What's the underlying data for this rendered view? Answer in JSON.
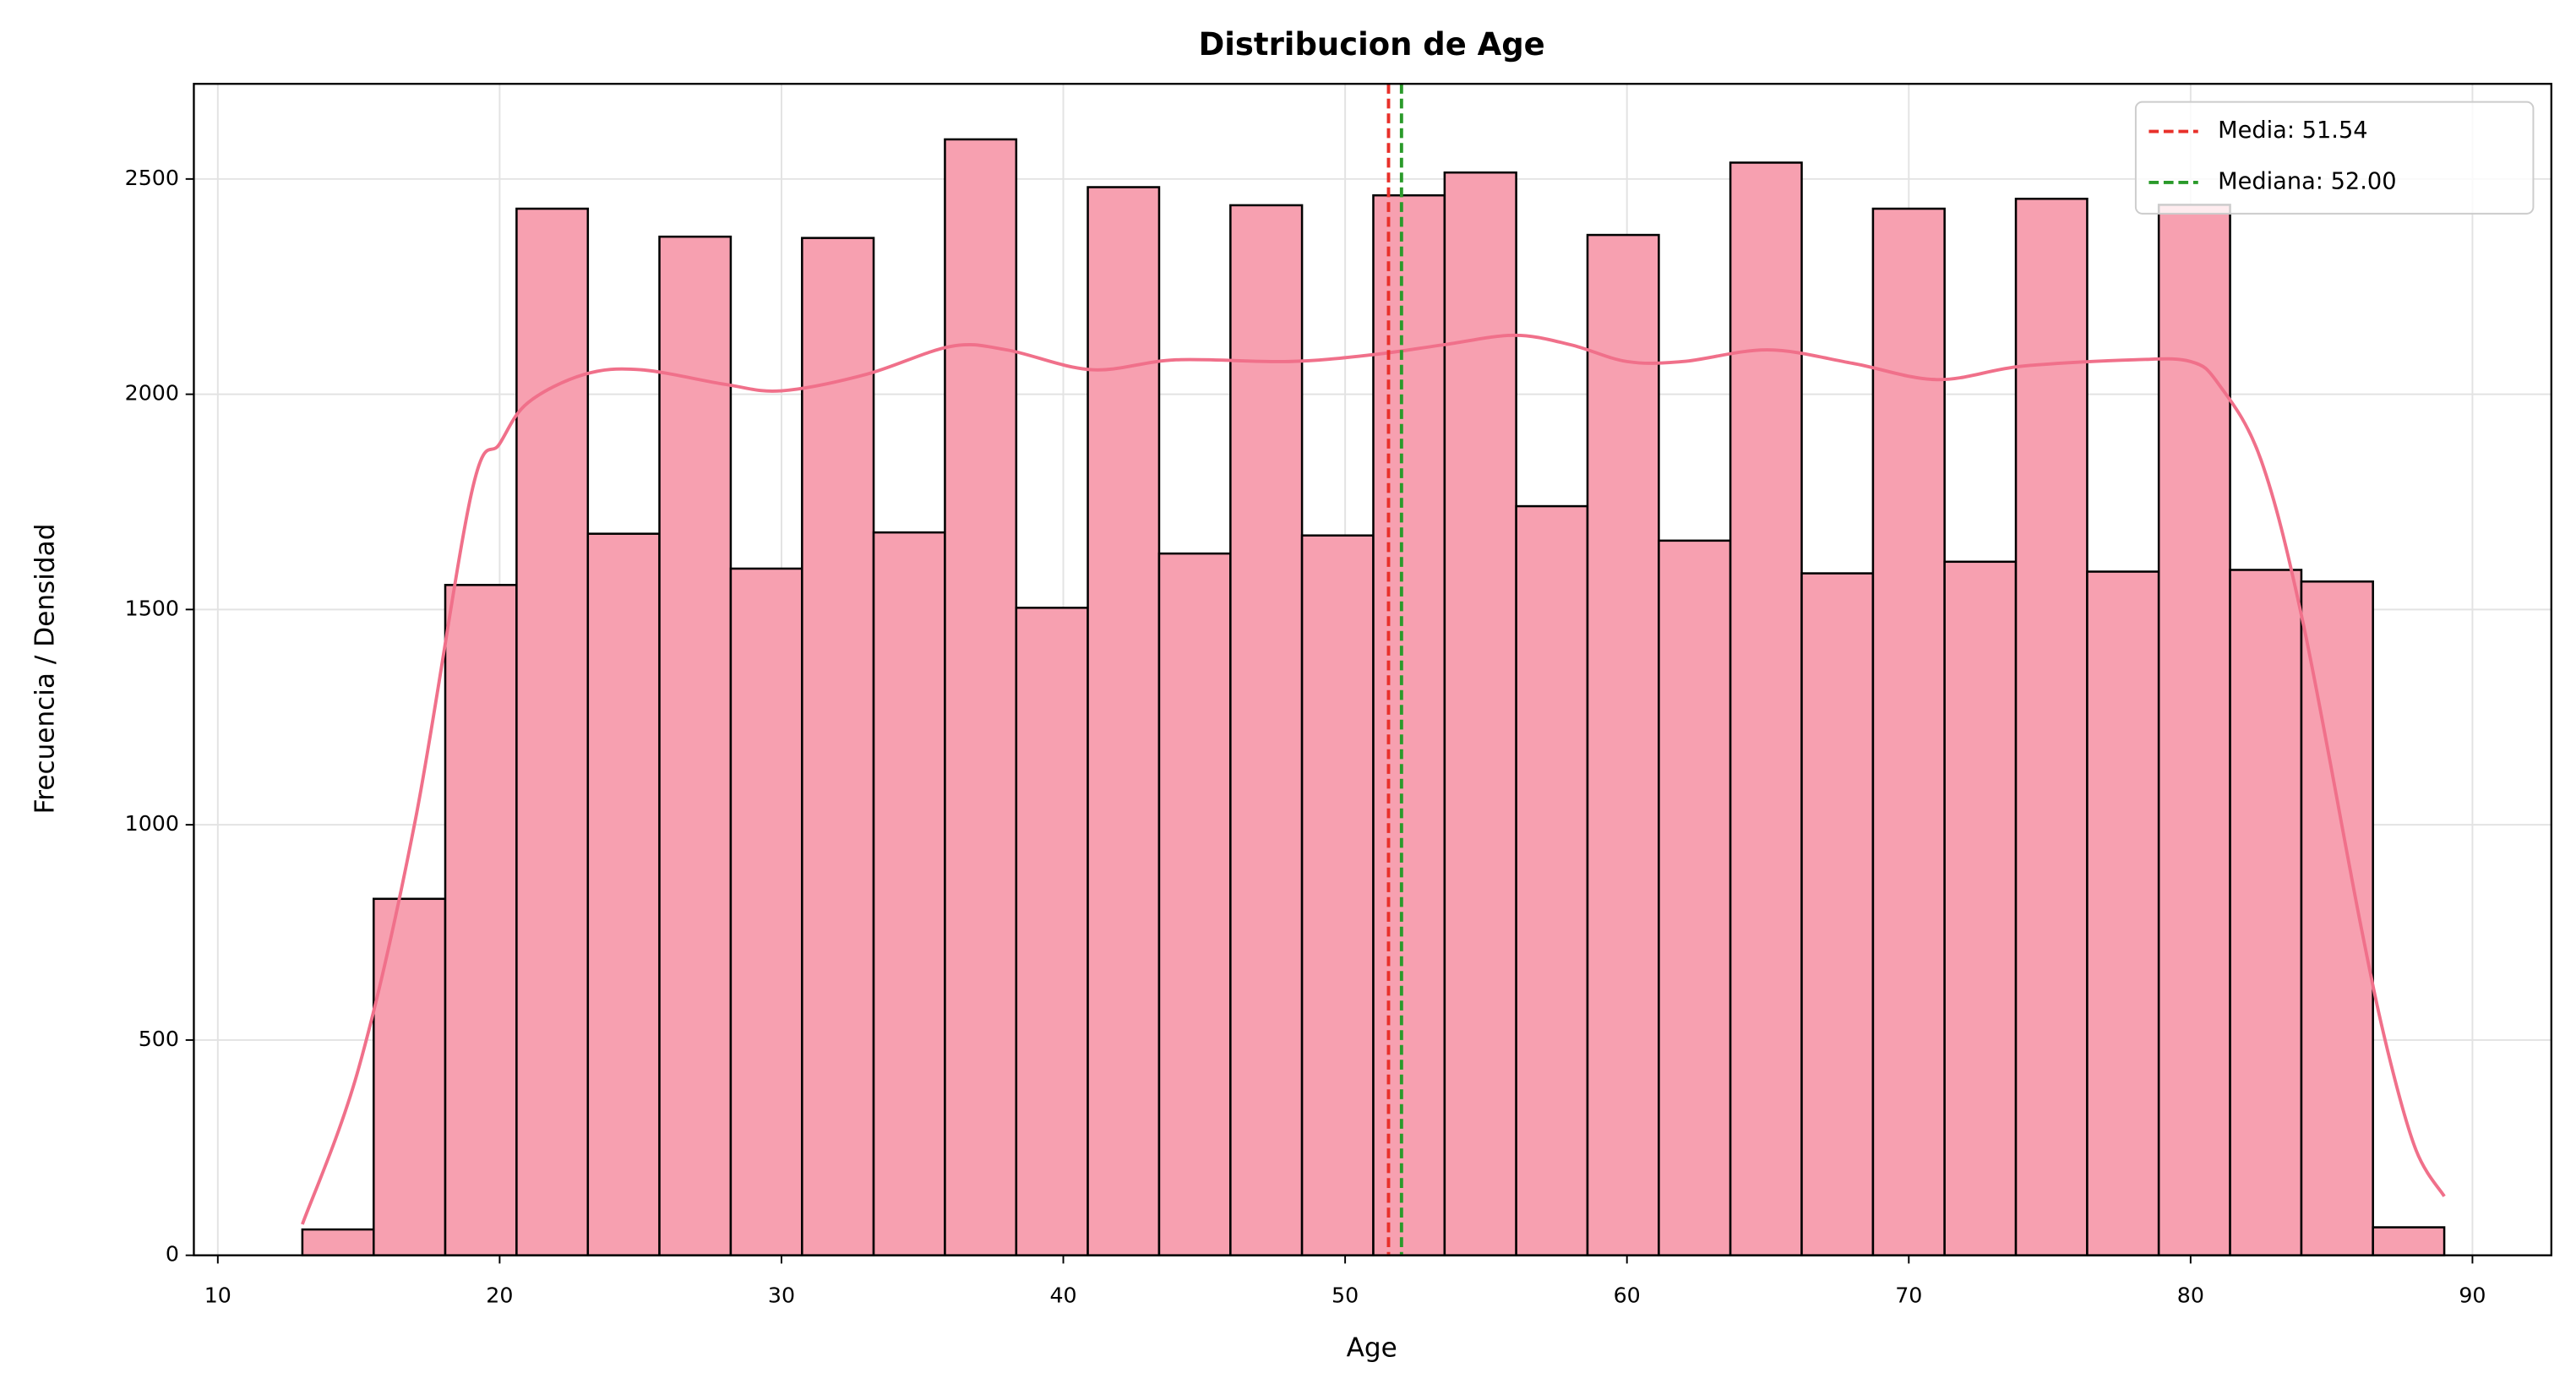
{
  "chart_data": {
    "type": "histogram",
    "title": "Distribucion de Age",
    "x_label": "Age",
    "y_label": "Frecuencia / Densidad",
    "bins": [
      13,
      15.53,
      18.07,
      20.6,
      23.13,
      25.67,
      28.2,
      30.73,
      33.27,
      35.8,
      38.33,
      40.87,
      43.4,
      45.93,
      48.47,
      51,
      53.53,
      56.07,
      58.6,
      61.13,
      63.67,
      66.2,
      68.73,
      71.27,
      73.8,
      76.33,
      78.87,
      81.4,
      83.93,
      86.47,
      89
    ],
    "values": [
      60,
      828,
      1557,
      2431,
      1676,
      2366,
      1595,
      2363,
      1679,
      2592,
      1504,
      2481,
      1630,
      2439,
      1672,
      2462,
      2515,
      1740,
      2370,
      1660,
      2538,
      1584,
      2431,
      1611,
      2454,
      1588,
      2440,
      1592,
      1565,
      65
    ],
    "color": "#f7a0b0",
    "edge_color": "#000000",
    "kde": {
      "color": "#f0708a",
      "x": [
        13,
        15,
        17,
        19,
        20,
        21,
        23,
        25,
        28,
        30,
        33,
        36,
        38,
        41,
        44,
        48,
        51,
        53.5,
        56,
        58,
        60,
        62,
        65,
        68,
        71,
        74,
        78,
        80,
        81,
        82.5,
        84,
        86,
        87,
        88,
        89
      ],
      "y": [
        72,
        435,
        1008,
        1770,
        1885,
        1980,
        2046,
        2057,
        2023,
        2008,
        2046,
        2111,
        2103,
        2057,
        2080,
        2076,
        2092,
        2115,
        2137,
        2115,
        2076,
        2076,
        2103,
        2072,
        2034,
        2065,
        2080,
        2076,
        2023,
        1847,
        1466,
        779,
        473,
        244,
        137
      ]
    },
    "lines": [
      {
        "label": "Media: 51.54",
        "value": 51.54,
        "color": "#e8302a"
      },
      {
        "label": "Mediana: 52.00",
        "value": 52.0,
        "color": "#2a9a2a"
      }
    ],
    "xlim": [
      9.15,
      92.8
    ],
    "xticks": [
      10,
      20,
      30,
      40,
      50,
      60,
      70,
      80,
      90
    ],
    "ylim": [
      0,
      2721
    ],
    "yticks": [
      0,
      500,
      1000,
      1500,
      2000,
      2500
    ],
    "grid": true,
    "legend": "upper right"
  }
}
